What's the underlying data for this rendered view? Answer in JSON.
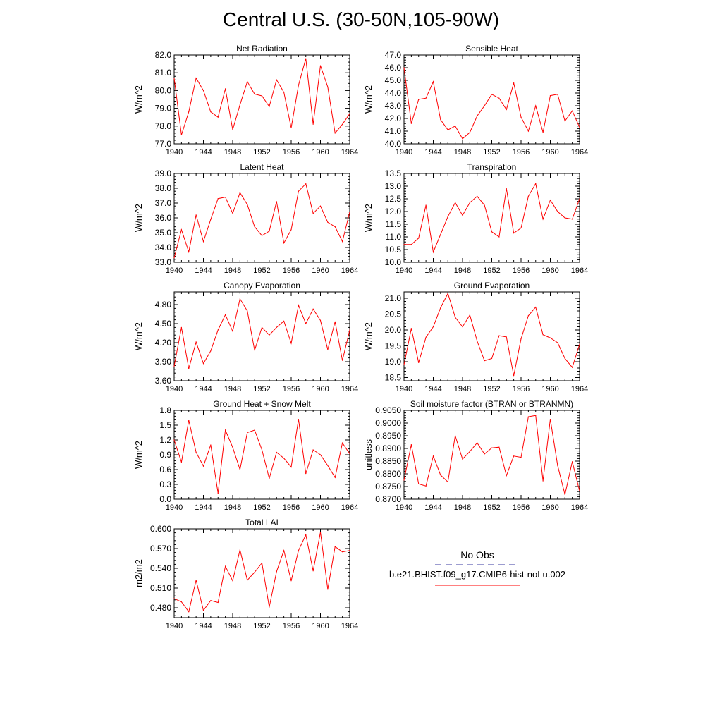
{
  "page": {
    "title": "Central U.S. (30-50N,105-90W)"
  },
  "legend": {
    "obs_label": "No Obs",
    "obs_color": "#3a3aa0",
    "model_label": "b.e21.BHIST.f09_g17.CMIP6-hist-noLu.002",
    "model_color": "#ff0000"
  },
  "chart_data": [
    {
      "type": "line",
      "title": "Net Radiation",
      "ylabel": "W/m^2",
      "xlabel": "",
      "xlim": [
        1940,
        1964
      ],
      "x_ticks": [
        "1940",
        "1944",
        "1948",
        "1952",
        "1956",
        "1960",
        "1964"
      ],
      "ylim": [
        77.0,
        82.0
      ],
      "y_ticks": [
        "77.0",
        "78.0",
        "79.0",
        "80.0",
        "81.0",
        "82.0"
      ],
      "series": [
        {
          "color": "#ff0000",
          "x": [
            1940,
            1941,
            1942,
            1943,
            1944,
            1945,
            1946,
            1947,
            1948,
            1949,
            1950,
            1951,
            1952,
            1953,
            1954,
            1955,
            1956,
            1957,
            1958,
            1959,
            1960,
            1961,
            1962,
            1963,
            1964
          ],
          "values": [
            80.7,
            77.5,
            78.8,
            80.7,
            80.0,
            78.8,
            78.5,
            80.1,
            77.8,
            79.2,
            80.5,
            79.8,
            79.7,
            79.1,
            80.6,
            79.9,
            77.9,
            80.3,
            81.8,
            78.1,
            81.4,
            80.2,
            77.6,
            78.1,
            78.7
          ]
        }
      ]
    },
    {
      "type": "line",
      "title": "Sensible Heat",
      "ylabel": "W/m^2",
      "xlabel": "",
      "xlim": [
        1940,
        1964
      ],
      "x_ticks": [
        "1940",
        "1944",
        "1948",
        "1952",
        "1956",
        "1960",
        "1964"
      ],
      "ylim": [
        40.0,
        47.0
      ],
      "y_ticks": [
        "40.0",
        "41.0",
        "42.0",
        "43.0",
        "44.0",
        "45.0",
        "46.0",
        "47.0"
      ],
      "series": [
        {
          "color": "#ff0000",
          "x": [
            1940,
            1941,
            1942,
            1943,
            1944,
            1945,
            1946,
            1947,
            1948,
            1949,
            1950,
            1951,
            1952,
            1953,
            1954,
            1955,
            1956,
            1957,
            1958,
            1959,
            1960,
            1961,
            1962,
            1963,
            1964
          ],
          "values": [
            46.0,
            41.6,
            43.5,
            43.6,
            44.9,
            41.9,
            41.1,
            41.4,
            40.4,
            40.9,
            42.2,
            43.0,
            43.9,
            43.6,
            42.7,
            44.8,
            42.1,
            41.0,
            43.0,
            40.9,
            43.8,
            43.9,
            41.8,
            42.6,
            41.3
          ]
        }
      ]
    },
    {
      "type": "line",
      "title": "Latent Heat",
      "ylabel": "W/m^2",
      "xlabel": "",
      "xlim": [
        1940,
        1964
      ],
      "x_ticks": [
        "1940",
        "1944",
        "1948",
        "1952",
        "1956",
        "1960",
        "1964"
      ],
      "ylim": [
        33.0,
        39.0
      ],
      "y_ticks": [
        "33.0",
        "34.0",
        "35.0",
        "36.0",
        "37.0",
        "38.0",
        "39.0"
      ],
      "series": [
        {
          "color": "#ff0000",
          "x": [
            1940,
            1941,
            1942,
            1943,
            1944,
            1945,
            1946,
            1947,
            1948,
            1949,
            1950,
            1951,
            1952,
            1953,
            1954,
            1955,
            1956,
            1957,
            1958,
            1959,
            1960,
            1961,
            1962,
            1963,
            1964
          ],
          "values": [
            33.3,
            35.2,
            33.7,
            36.2,
            34.4,
            35.9,
            37.3,
            37.4,
            36.3,
            37.7,
            36.9,
            35.4,
            34.8,
            35.1,
            37.1,
            34.3,
            35.2,
            37.8,
            38.3,
            36.3,
            36.8,
            35.7,
            35.4,
            34.4,
            36.4
          ]
        }
      ]
    },
    {
      "type": "line",
      "title": "Transpiration",
      "ylabel": "W/m^2",
      "xlabel": "",
      "xlim": [
        1940,
        1964
      ],
      "x_ticks": [
        "1940",
        "1944",
        "1948",
        "1952",
        "1956",
        "1960",
        "1964"
      ],
      "ylim": [
        10.0,
        13.5
      ],
      "y_ticks": [
        "10.0",
        "10.5",
        "11.0",
        "11.5",
        "12.0",
        "12.5",
        "13.0",
        "13.5"
      ],
      "series": [
        {
          "color": "#ff0000",
          "x": [
            1940,
            1941,
            1942,
            1943,
            1944,
            1945,
            1946,
            1947,
            1948,
            1949,
            1950,
            1951,
            1952,
            1953,
            1954,
            1955,
            1956,
            1957,
            1958,
            1959,
            1960,
            1961,
            1962,
            1963,
            1964
          ],
          "values": [
            10.7,
            10.7,
            10.95,
            12.25,
            10.4,
            11.1,
            11.8,
            12.35,
            11.85,
            12.35,
            12.6,
            12.25,
            11.2,
            11.0,
            12.9,
            11.15,
            11.35,
            12.6,
            13.1,
            11.7,
            12.45,
            12.0,
            11.75,
            11.7,
            12.5
          ]
        }
      ]
    },
    {
      "type": "line",
      "title": "Canopy Evaporation",
      "ylabel": "W/m^2",
      "xlabel": "",
      "xlim": [
        1940,
        1964
      ],
      "x_ticks": [
        "1940",
        "1944",
        "1948",
        "1952",
        "1956",
        "1960",
        "1964"
      ],
      "ylim": [
        3.6,
        5.0
      ],
      "y_ticks": [
        "3.60",
        "3.90",
        "4.20",
        "4.50",
        "4.80"
      ],
      "series": [
        {
          "color": "#ff0000",
          "x": [
            1940,
            1941,
            1942,
            1943,
            1944,
            1945,
            1946,
            1947,
            1948,
            1949,
            1950,
            1951,
            1952,
            1953,
            1954,
            1955,
            1956,
            1957,
            1958,
            1959,
            1960,
            1961,
            1962,
            1963,
            1964
          ],
          "values": [
            3.83,
            4.44,
            3.79,
            4.21,
            3.87,
            4.07,
            4.4,
            4.64,
            4.38,
            4.89,
            4.7,
            4.08,
            4.44,
            4.32,
            4.44,
            4.54,
            4.19,
            4.79,
            4.5,
            4.73,
            4.55,
            4.09,
            4.53,
            3.92,
            4.4
          ]
        }
      ]
    },
    {
      "type": "line",
      "title": "Ground Evaporation",
      "ylabel": "W/m^2",
      "xlabel": "",
      "xlim": [
        1940,
        1964
      ],
      "x_ticks": [
        "1940",
        "1944",
        "1948",
        "1952",
        "1956",
        "1960",
        "1964"
      ],
      "ylim": [
        18.4,
        21.2
      ],
      "y_ticks": [
        "18.5",
        "19.0",
        "19.5",
        "20.0",
        "20.5",
        "21.0"
      ],
      "series": [
        {
          "color": "#ff0000",
          "x": [
            1940,
            1941,
            1942,
            1943,
            1944,
            1945,
            1946,
            1947,
            1948,
            1949,
            1950,
            1951,
            1952,
            1953,
            1954,
            1955,
            1956,
            1957,
            1958,
            1959,
            1960,
            1961,
            1962,
            1963,
            1964
          ],
          "values": [
            18.9,
            20.05,
            18.97,
            19.77,
            20.1,
            20.7,
            21.15,
            20.4,
            20.1,
            20.47,
            19.65,
            19.03,
            19.1,
            19.82,
            19.78,
            18.56,
            19.72,
            20.45,
            20.72,
            19.85,
            19.75,
            19.6,
            19.1,
            18.82,
            19.55
          ]
        }
      ]
    },
    {
      "type": "line",
      "title": "Ground Heat + Snow Melt",
      "ylabel": "W/m^2",
      "xlabel": "",
      "xlim": [
        1940,
        1964
      ],
      "x_ticks": [
        "1940",
        "1944",
        "1948",
        "1952",
        "1956",
        "1960",
        "1964"
      ],
      "ylim": [
        0.0,
        1.8
      ],
      "y_ticks": [
        "0.0",
        "0.3",
        "0.6",
        "0.9",
        "1.2",
        "1.5",
        "1.8"
      ],
      "series": [
        {
          "color": "#ff0000",
          "x": [
            1940,
            1941,
            1942,
            1943,
            1944,
            1945,
            1946,
            1947,
            1948,
            1949,
            1950,
            1951,
            1952,
            1953,
            1954,
            1955,
            1956,
            1957,
            1958,
            1959,
            1960,
            1961,
            1962,
            1963,
            1964
          ],
          "values": [
            1.2,
            0.75,
            1.6,
            0.95,
            0.67,
            1.1,
            0.12,
            1.4,
            1.05,
            0.6,
            1.35,
            1.4,
            1.0,
            0.42,
            0.95,
            0.83,
            0.65,
            1.62,
            0.52,
            1.0,
            0.9,
            0.68,
            0.44,
            1.14,
            0.92
          ]
        }
      ]
    },
    {
      "type": "line",
      "title": "Soil moisture factor (BTRAN or BTRANMN)",
      "ylabel": "unitless",
      "xlabel": "",
      "xlim": [
        1940,
        1964
      ],
      "x_ticks": [
        "1940",
        "1944",
        "1948",
        "1952",
        "1956",
        "1960",
        "1964"
      ],
      "ylim": [
        0.87,
        0.905
      ],
      "y_ticks": [
        "0.8700",
        "0.8750",
        "0.8800",
        "0.8850",
        "0.8900",
        "0.8950",
        "0.9000",
        "0.9050"
      ],
      "series": [
        {
          "color": "#ff0000",
          "x": [
            1940,
            1941,
            1942,
            1943,
            1944,
            1945,
            1946,
            1947,
            1948,
            1949,
            1950,
            1951,
            1952,
            1953,
            1954,
            1955,
            1956,
            1957,
            1958,
            1959,
            1960,
            1961,
            1962,
            1963,
            1964
          ],
          "values": [
            0.8775,
            0.8915,
            0.876,
            0.8752,
            0.887,
            0.8795,
            0.8768,
            0.895,
            0.8858,
            0.8888,
            0.8922,
            0.8878,
            0.8902,
            0.8905,
            0.8793,
            0.887,
            0.8865,
            0.9025,
            0.903,
            0.8772,
            0.9015,
            0.8833,
            0.8718,
            0.8848,
            0.8732
          ]
        }
      ]
    },
    {
      "type": "line",
      "title": "Total LAI",
      "ylabel": "m2/m2",
      "xlabel": "",
      "xlim": [
        1940,
        1964
      ],
      "x_ticks": [
        "1940",
        "1944",
        "1948",
        "1952",
        "1956",
        "1960",
        "1964"
      ],
      "ylim": [
        0.465,
        0.6
      ],
      "y_ticks": [
        "0.480",
        "0.510",
        "0.540",
        "0.570",
        "0.600"
      ],
      "series": [
        {
          "color": "#ff0000",
          "x": [
            1940,
            1941,
            1942,
            1943,
            1944,
            1945,
            1946,
            1947,
            1948,
            1949,
            1950,
            1951,
            1952,
            1953,
            1954,
            1955,
            1956,
            1957,
            1958,
            1959,
            1960,
            1961,
            1962,
            1963,
            1964
          ],
          "values": [
            0.494,
            0.489,
            0.474,
            0.522,
            0.476,
            0.491,
            0.488,
            0.543,
            0.521,
            0.568,
            0.522,
            0.534,
            0.548,
            0.481,
            0.535,
            0.567,
            0.521,
            0.567,
            0.591,
            0.536,
            0.595,
            0.508,
            0.573,
            0.565,
            0.567
          ]
        }
      ]
    }
  ]
}
